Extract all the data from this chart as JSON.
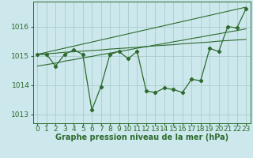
{
  "title": "Graphe pression niveau de la mer (hPa)",
  "bg_color": "#cce8ec",
  "grid_color": "#aacccc",
  "line_color": "#2d6a2d",
  "x_labels": [
    "0",
    "1",
    "2",
    "3",
    "4",
    "5",
    "6",
    "7",
    "8",
    "9",
    "10",
    "11",
    "12",
    "13",
    "14",
    "15",
    "16",
    "17",
    "18",
    "19",
    "20",
    "21",
    "22",
    "23"
  ],
  "x_values": [
    0,
    1,
    2,
    3,
    4,
    5,
    6,
    7,
    8,
    9,
    10,
    11,
    12,
    13,
    14,
    15,
    16,
    17,
    18,
    19,
    20,
    21,
    22,
    23
  ],
  "main_line": [
    1015.05,
    1015.05,
    1014.65,
    1015.05,
    1015.2,
    1015.05,
    1013.15,
    1013.95,
    1015.05,
    1015.15,
    1014.9,
    1015.15,
    1013.8,
    1013.75,
    1013.9,
    1013.85,
    1013.75,
    1014.2,
    1014.15,
    1015.25,
    1015.15,
    1016.0,
    1015.95,
    1016.6
  ],
  "trend_line1": [
    1015.05,
    1015.07,
    1015.09,
    1015.12,
    1015.14,
    1015.16,
    1015.18,
    1015.2,
    1015.23,
    1015.25,
    1015.27,
    1015.29,
    1015.32,
    1015.34,
    1015.36,
    1015.38,
    1015.41,
    1015.43,
    1015.45,
    1015.47,
    1015.5,
    1015.52,
    1015.54,
    1015.56
  ],
  "trend_line2": [
    1014.65,
    1014.7,
    1014.75,
    1014.82,
    1014.87,
    1014.93,
    1014.98,
    1015.04,
    1015.09,
    1015.15,
    1015.2,
    1015.26,
    1015.31,
    1015.37,
    1015.42,
    1015.48,
    1015.53,
    1015.59,
    1015.64,
    1015.7,
    1015.75,
    1015.81,
    1015.86,
    1015.92
  ],
  "trend_line3": [
    1015.05,
    1015.12,
    1015.19,
    1015.26,
    1015.33,
    1015.4,
    1015.47,
    1015.54,
    1015.61,
    1015.68,
    1015.75,
    1015.82,
    1015.89,
    1015.96,
    1016.03,
    1016.1,
    1016.17,
    1016.24,
    1016.31,
    1016.38,
    1016.45,
    1016.52,
    1016.59,
    1016.66
  ],
  "ylim": [
    1012.7,
    1016.85
  ],
  "yticks": [
    1013,
    1014,
    1015,
    1016
  ],
  "tick_fontsize": 6.5,
  "title_fontsize": 7.0
}
